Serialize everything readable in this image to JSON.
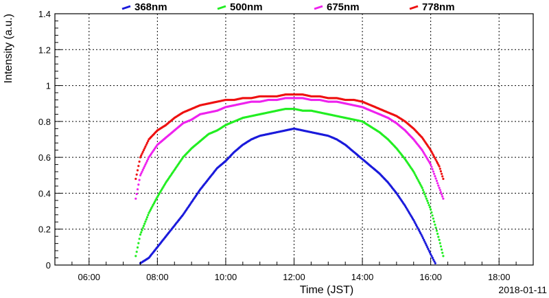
{
  "chart_data": {
    "type": "scatter",
    "xlabel": "Time (JST)",
    "ylabel": "Intensity (a.u.)",
    "date_note": "2018-01-11",
    "xlim_hours": [
      5.0,
      19.0
    ],
    "ylim": [
      0,
      1.4
    ],
    "x_ticks": [
      {
        "hour": 6,
        "label": "06:00"
      },
      {
        "hour": 8,
        "label": "08:00"
      },
      {
        "hour": 10,
        "label": "10:00"
      },
      {
        "hour": 12,
        "label": "12:00"
      },
      {
        "hour": 14,
        "label": "14:00"
      },
      {
        "hour": 16,
        "label": "16:00"
      },
      {
        "hour": 18,
        "label": "18:00"
      }
    ],
    "y_ticks": [
      {
        "value": 0,
        "label": "0"
      },
      {
        "value": 0.2,
        "label": "0.2"
      },
      {
        "value": 0.4,
        "label": "0.4"
      },
      {
        "value": 0.6,
        "label": "0.6"
      },
      {
        "value": 0.8,
        "label": "0.8"
      },
      {
        "value": 1.0,
        "label": "1"
      },
      {
        "value": 1.2,
        "label": "1.2"
      },
      {
        "value": 1.4,
        "label": "1.4"
      }
    ],
    "grid": true,
    "legend_position": "top",
    "series": [
      {
        "name": "368nm",
        "color": "#1a1adb",
        "points": [
          [
            "07:30",
            0.01
          ],
          [
            "07:45",
            0.04
          ],
          [
            "08:00",
            0.1
          ],
          [
            "08:15",
            0.16
          ],
          [
            "08:30",
            0.22
          ],
          [
            "08:45",
            0.28
          ],
          [
            "09:00",
            0.35
          ],
          [
            "09:15",
            0.42
          ],
          [
            "09:30",
            0.48
          ],
          [
            "09:45",
            0.54
          ],
          [
            "10:00",
            0.58
          ],
          [
            "10:15",
            0.63
          ],
          [
            "10:30",
            0.67
          ],
          [
            "10:45",
            0.7
          ],
          [
            "11:00",
            0.72
          ],
          [
            "11:15",
            0.73
          ],
          [
            "11:30",
            0.74
          ],
          [
            "11:45",
            0.75
          ],
          [
            "12:00",
            0.76
          ],
          [
            "12:15",
            0.75
          ],
          [
            "12:30",
            0.74
          ],
          [
            "12:45",
            0.73
          ],
          [
            "13:00",
            0.72
          ],
          [
            "13:15",
            0.7
          ],
          [
            "13:30",
            0.67
          ],
          [
            "13:45",
            0.63
          ],
          [
            "14:00",
            0.59
          ],
          [
            "14:15",
            0.55
          ],
          [
            "14:30",
            0.51
          ],
          [
            "14:45",
            0.46
          ],
          [
            "15:00",
            0.4
          ],
          [
            "15:15",
            0.33
          ],
          [
            "15:30",
            0.25
          ],
          [
            "15:45",
            0.16
          ],
          [
            "16:00",
            0.06
          ],
          [
            "16:08",
            0.01
          ]
        ]
      },
      {
        "name": "500nm",
        "color": "#22ee22",
        "points": [
          [
            "07:22",
            0.05
          ],
          [
            "07:30",
            0.17
          ],
          [
            "07:45",
            0.29
          ],
          [
            "08:00",
            0.38
          ],
          [
            "08:15",
            0.46
          ],
          [
            "08:30",
            0.53
          ],
          [
            "08:45",
            0.6
          ],
          [
            "09:00",
            0.65
          ],
          [
            "09:15",
            0.69
          ],
          [
            "09:30",
            0.73
          ],
          [
            "09:45",
            0.75
          ],
          [
            "10:00",
            0.78
          ],
          [
            "10:15",
            0.8
          ],
          [
            "10:30",
            0.82
          ],
          [
            "10:45",
            0.83
          ],
          [
            "11:00",
            0.84
          ],
          [
            "11:15",
            0.85
          ],
          [
            "11:30",
            0.86
          ],
          [
            "11:45",
            0.87
          ],
          [
            "12:00",
            0.87
          ],
          [
            "12:15",
            0.86
          ],
          [
            "12:30",
            0.86
          ],
          [
            "12:45",
            0.85
          ],
          [
            "13:00",
            0.84
          ],
          [
            "13:15",
            0.83
          ],
          [
            "13:30",
            0.82
          ],
          [
            "13:45",
            0.81
          ],
          [
            "14:00",
            0.8
          ],
          [
            "14:15",
            0.77
          ],
          [
            "14:30",
            0.74
          ],
          [
            "14:45",
            0.7
          ],
          [
            "15:00",
            0.65
          ],
          [
            "15:15",
            0.59
          ],
          [
            "15:30",
            0.52
          ],
          [
            "15:45",
            0.43
          ],
          [
            "16:00",
            0.31
          ],
          [
            "16:15",
            0.14
          ],
          [
            "16:22",
            0.05
          ]
        ]
      },
      {
        "name": "675nm",
        "color": "#ee22ee",
        "points": [
          [
            "07:22",
            0.37
          ],
          [
            "07:30",
            0.5
          ],
          [
            "07:45",
            0.6
          ],
          [
            "08:00",
            0.67
          ],
          [
            "08:15",
            0.71
          ],
          [
            "08:30",
            0.75
          ],
          [
            "08:45",
            0.79
          ],
          [
            "09:00",
            0.81
          ],
          [
            "09:15",
            0.84
          ],
          [
            "09:30",
            0.85
          ],
          [
            "09:45",
            0.86
          ],
          [
            "10:00",
            0.88
          ],
          [
            "10:15",
            0.89
          ],
          [
            "10:30",
            0.9
          ],
          [
            "10:45",
            0.91
          ],
          [
            "11:00",
            0.91
          ],
          [
            "11:15",
            0.92
          ],
          [
            "11:30",
            0.92
          ],
          [
            "11:45",
            0.93
          ],
          [
            "12:00",
            0.93
          ],
          [
            "12:15",
            0.93
          ],
          [
            "12:30",
            0.92
          ],
          [
            "12:45",
            0.92
          ],
          [
            "13:00",
            0.91
          ],
          [
            "13:15",
            0.91
          ],
          [
            "13:30",
            0.9
          ],
          [
            "13:45",
            0.89
          ],
          [
            "14:00",
            0.88
          ],
          [
            "14:15",
            0.86
          ],
          [
            "14:30",
            0.84
          ],
          [
            "14:45",
            0.82
          ],
          [
            "15:00",
            0.79
          ],
          [
            "15:15",
            0.75
          ],
          [
            "15:30",
            0.7
          ],
          [
            "15:45",
            0.64
          ],
          [
            "16:00",
            0.56
          ],
          [
            "16:15",
            0.43
          ],
          [
            "16:22",
            0.37
          ]
        ]
      },
      {
        "name": "778nm",
        "color": "#ee1111",
        "points": [
          [
            "07:22",
            0.48
          ],
          [
            "07:30",
            0.6
          ],
          [
            "07:45",
            0.7
          ],
          [
            "08:00",
            0.75
          ],
          [
            "08:15",
            0.78
          ],
          [
            "08:30",
            0.82
          ],
          [
            "08:45",
            0.85
          ],
          [
            "09:00",
            0.87
          ],
          [
            "09:15",
            0.89
          ],
          [
            "09:30",
            0.9
          ],
          [
            "09:45",
            0.91
          ],
          [
            "10:00",
            0.92
          ],
          [
            "10:15",
            0.92
          ],
          [
            "10:30",
            0.93
          ],
          [
            "10:45",
            0.93
          ],
          [
            "11:00",
            0.94
          ],
          [
            "11:15",
            0.94
          ],
          [
            "11:30",
            0.94
          ],
          [
            "11:45",
            0.95
          ],
          [
            "12:00",
            0.95
          ],
          [
            "12:15",
            0.95
          ],
          [
            "12:30",
            0.94
          ],
          [
            "12:45",
            0.94
          ],
          [
            "13:00",
            0.93
          ],
          [
            "13:15",
            0.93
          ],
          [
            "13:30",
            0.92
          ],
          [
            "13:45",
            0.92
          ],
          [
            "14:00",
            0.91
          ],
          [
            "14:15",
            0.89
          ],
          [
            "14:30",
            0.87
          ],
          [
            "14:45",
            0.85
          ],
          [
            "15:00",
            0.83
          ],
          [
            "15:15",
            0.8
          ],
          [
            "15:30",
            0.76
          ],
          [
            "15:45",
            0.71
          ],
          [
            "16:00",
            0.64
          ],
          [
            "16:15",
            0.55
          ],
          [
            "16:22",
            0.48
          ]
        ]
      }
    ]
  }
}
